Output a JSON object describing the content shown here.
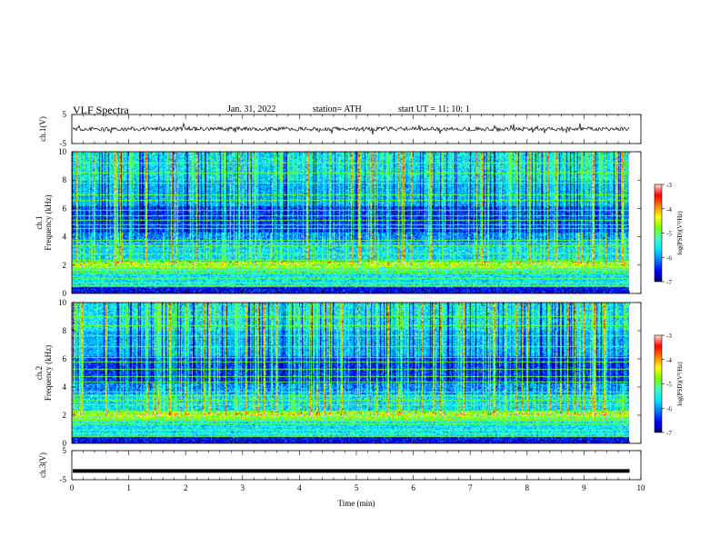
{
  "header": {
    "title": "VLF  Spectra",
    "date": "Jan. 31, 2022",
    "station": "station= ATH",
    "start_ut": "start  UT  =    11: 10: 1"
  },
  "chart_data": {
    "type": "heatmap",
    "xlabel": "Time  (min)",
    "xlim": [
      0,
      10
    ],
    "xticks": [
      "0",
      "1",
      "2",
      "3",
      "4",
      "5",
      "6",
      "7",
      "8",
      "9",
      "10"
    ],
    "panels": [
      {
        "id": "ch1-waveform",
        "type": "line",
        "ylabel": "ch.1(V)",
        "ylim": [
          -5,
          5
        ],
        "yticks": [
          "5",
          "-5"
        ],
        "color": "#000000",
        "baseline": 0,
        "description_values": {
          "min_approx": -1.5,
          "max_approx": 1.5,
          "end_time": 9.8
        }
      },
      {
        "id": "ch1-spectrogram",
        "type": "heatmap",
        "ylabel_top": "ch.1",
        "ylabel": "Frequency  (kHz)",
        "ylim": [
          0,
          10
        ],
        "yticks": [
          "0",
          "2",
          "4",
          "6",
          "8",
          "10"
        ],
        "end_time": 9.8,
        "colorbar": {
          "label": "log(PSD)(V²/Hz)",
          "range": [
            -7,
            -3
          ],
          "ticks": [
            "-3",
            "-4",
            "-5",
            "-6",
            "-7"
          ]
        }
      },
      {
        "id": "ch2-spectrogram",
        "type": "heatmap",
        "ylabel_top": "ch.2",
        "ylabel": "Frequency  (kHz)",
        "ylim": [
          0,
          10
        ],
        "yticks": [
          "0",
          "2",
          "4",
          "6",
          "8",
          "10"
        ],
        "end_time": 9.8,
        "colorbar": {
          "label": "log(PSD)(V²/Hz)",
          "range": [
            -7,
            -3
          ],
          "ticks": [
            "-3",
            "-4",
            "-5",
            "-6",
            "-7"
          ]
        }
      },
      {
        "id": "ch3-waveform",
        "type": "line",
        "ylabel": "ch.3(V)",
        "ylim": [
          -5,
          5
        ],
        "yticks": [
          "5",
          "-5"
        ],
        "color": "#000000",
        "baseline": -2,
        "end_time": 9.8
      }
    ],
    "colormap": [
      "#00007f",
      "#0000ff",
      "#007fff",
      "#00e5ff",
      "#40ffbf",
      "#7fff00",
      "#ffff00",
      "#ff7f00",
      "#ff0000",
      "#ffdede"
    ]
  }
}
